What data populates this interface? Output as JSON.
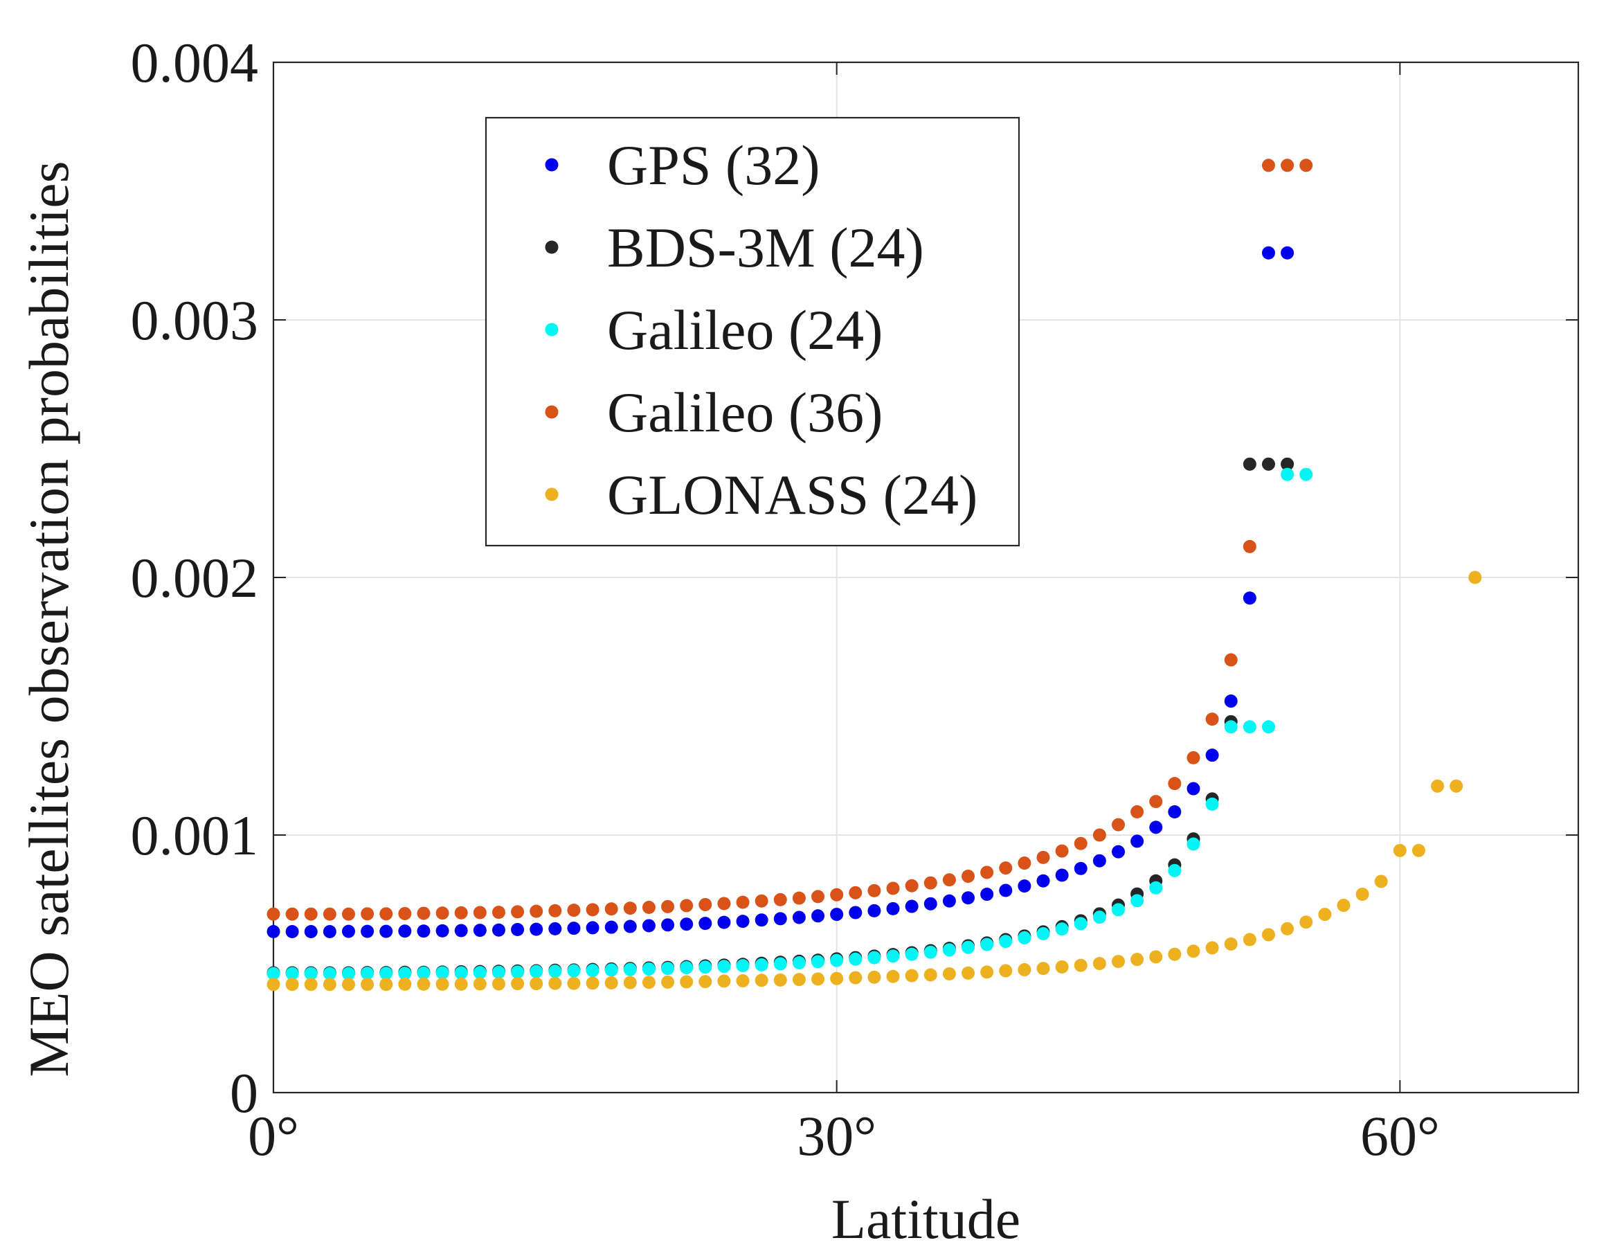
{
  "chart_data": {
    "type": "scatter",
    "xlabel": "Latitude",
    "ylabel": "MEO satellites observation probabilities",
    "xlim": [
      0,
      69.5
    ],
    "ylim": [
      0,
      0.004
    ],
    "grid": true,
    "legend_position": "top-left",
    "x_ticks": [
      {
        "value": 0,
        "label": "0°"
      },
      {
        "value": 30,
        "label": "30°"
      },
      {
        "value": 60,
        "label": "60°"
      }
    ],
    "y_ticks": [
      {
        "value": 0,
        "label": "0"
      },
      {
        "value": 0.001,
        "label": "0.001"
      },
      {
        "value": 0.002,
        "label": "0.002"
      },
      {
        "value": 0.003,
        "label": "0.003"
      },
      {
        "value": 0.004,
        "label": "0.004"
      }
    ],
    "series": [
      {
        "name": "GPS (32)",
        "color": "#0000ee",
        "x": [
          0,
          1,
          2,
          3,
          4,
          5,
          6,
          7,
          8,
          9,
          10,
          11,
          12,
          13,
          14,
          15,
          16,
          17,
          18,
          19,
          20,
          21,
          22,
          23,
          24,
          25,
          26,
          27,
          28,
          29,
          30,
          31,
          32,
          33,
          34,
          35,
          36,
          37,
          38,
          39,
          40,
          41,
          42,
          43,
          44,
          45,
          46,
          47,
          48,
          49,
          50,
          51,
          52,
          53,
          54
        ],
        "y": [
          0.000625,
          0.000625,
          0.000625,
          0.000625,
          0.000626,
          0.000626,
          0.000626,
          0.000627,
          0.000627,
          0.000628,
          0.000629,
          0.00063,
          0.000631,
          0.000633,
          0.000634,
          0.000636,
          0.000638,
          0.00064,
          0.000642,
          0.000645,
          0.000648,
          0.000651,
          0.000654,
          0.000657,
          0.000661,
          0.000665,
          0.00067,
          0.000675,
          0.00068,
          0.000686,
          0.000692,
          0.000699,
          0.000706,
          0.000714,
          0.000723,
          0.000733,
          0.000744,
          0.000756,
          0.00077,
          0.000785,
          0.000802,
          0.000822,
          0.000844,
          0.00087,
          0.0009,
          0.000935,
          0.000976,
          0.00103,
          0.00109,
          0.00118,
          0.00131,
          0.00152,
          0.00192,
          0.00326,
          0.00326
        ]
      },
      {
        "name": "BDS-3M (24)",
        "color": "#262626",
        "x": [
          0,
          1,
          2,
          3,
          4,
          5,
          6,
          7,
          8,
          9,
          10,
          11,
          12,
          13,
          14,
          15,
          16,
          17,
          18,
          19,
          20,
          21,
          22,
          23,
          24,
          25,
          26,
          27,
          28,
          29,
          30,
          31,
          32,
          33,
          34,
          35,
          36,
          37,
          38,
          39,
          40,
          41,
          42,
          43,
          44,
          45,
          46,
          47,
          48,
          49,
          50,
          51,
          52,
          53,
          54
        ],
        "y": [
          0.000465,
          0.000465,
          0.000465,
          0.000465,
          0.000465,
          0.000466,
          0.000466,
          0.000467,
          0.000467,
          0.000468,
          0.000469,
          0.00047,
          0.000471,
          0.000472,
          0.000473,
          0.000475,
          0.000476,
          0.000478,
          0.00048,
          0.000482,
          0.000484,
          0.000486,
          0.000489,
          0.000492,
          0.000495,
          0.000498,
          0.000502,
          0.000506,
          0.00051,
          0.000514,
          0.000519,
          0.000524,
          0.00053,
          0.000536,
          0.000543,
          0.000551,
          0.00056,
          0.00057,
          0.000581,
          0.000594,
          0.000608,
          0.000624,
          0.000644,
          0.000667,
          0.000694,
          0.000728,
          0.000771,
          0.000822,
          0.000884,
          0.000985,
          0.00114,
          0.00144,
          0.00244,
          0.00244,
          0.00244
        ]
      },
      {
        "name": "Galileo (24)",
        "color": "#00f5f5",
        "x": [
          0,
          1,
          2,
          3,
          4,
          5,
          6,
          7,
          8,
          9,
          10,
          11,
          12,
          13,
          14,
          15,
          16,
          17,
          18,
          19,
          20,
          21,
          22,
          23,
          24,
          25,
          26,
          27,
          28,
          29,
          30,
          31,
          32,
          33,
          34,
          35,
          36,
          37,
          38,
          39,
          40,
          41,
          42,
          43,
          44,
          45,
          46,
          47,
          48,
          49,
          50,
          51,
          52,
          53,
          54,
          55
        ],
        "y": [
          0.000462,
          0.000462,
          0.000462,
          0.000462,
          0.000462,
          0.000463,
          0.000463,
          0.000463,
          0.000464,
          0.000465,
          0.000465,
          0.000466,
          0.000467,
          0.000468,
          0.00047,
          0.000471,
          0.000473,
          0.000474,
          0.000476,
          0.000478,
          0.00048,
          0.000482,
          0.000485,
          0.000487,
          0.00049,
          0.000493,
          0.000496,
          0.0005,
          0.000504,
          0.000508,
          0.000513,
          0.000518,
          0.000524,
          0.00053,
          0.000537,
          0.000545,
          0.000554,
          0.000564,
          0.000575,
          0.000587,
          0.000601,
          0.000617,
          0.000635,
          0.000656,
          0.000681,
          0.00071,
          0.000745,
          0.000795,
          0.000862,
          0.000965,
          0.00112,
          0.00142,
          0.00142,
          0.00142,
          0.0024,
          0.0024
        ]
      },
      {
        "name": "Galileo (36)",
        "color": "#d95319",
        "x": [
          0,
          1,
          2,
          3,
          4,
          5,
          6,
          7,
          8,
          9,
          10,
          11,
          12,
          13,
          14,
          15,
          16,
          17,
          18,
          19,
          20,
          21,
          22,
          23,
          24,
          25,
          26,
          27,
          28,
          29,
          30,
          31,
          32,
          33,
          34,
          35,
          36,
          37,
          38,
          39,
          40,
          41,
          42,
          43,
          44,
          45,
          46,
          47,
          48,
          49,
          50,
          51,
          52,
          53,
          54,
          55
        ],
        "y": [
          0.000693,
          0.000693,
          0.000693,
          0.000693,
          0.000693,
          0.000694,
          0.000694,
          0.000695,
          0.000696,
          0.000697,
          0.000698,
          0.000699,
          0.0007,
          0.000702,
          0.000704,
          0.000706,
          0.000708,
          0.00071,
          0.000713,
          0.000716,
          0.000719,
          0.000722,
          0.000726,
          0.00073,
          0.000734,
          0.000739,
          0.000744,
          0.000749,
          0.000755,
          0.000761,
          0.000768,
          0.000776,
          0.000784,
          0.000793,
          0.000803,
          0.000814,
          0.000826,
          0.00084,
          0.000855,
          0.000872,
          0.000891,
          0.000913,
          0.000938,
          0.000967,
          0.001,
          0.00104,
          0.00109,
          0.00113,
          0.0012,
          0.0013,
          0.00145,
          0.00168,
          0.00212,
          0.0036,
          0.0036,
          0.0036
        ]
      },
      {
        "name": "GLONASS (24)",
        "color": "#edb120",
        "x": [
          0,
          1,
          2,
          3,
          4,
          5,
          6,
          7,
          8,
          9,
          10,
          11,
          12,
          13,
          14,
          15,
          16,
          17,
          18,
          19,
          20,
          21,
          22,
          23,
          24,
          25,
          26,
          27,
          28,
          29,
          30,
          31,
          32,
          33,
          34,
          35,
          36,
          37,
          38,
          39,
          40,
          41,
          42,
          43,
          44,
          45,
          46,
          47,
          48,
          49,
          50,
          51,
          52,
          53,
          54,
          55,
          56,
          57,
          58,
          59,
          60,
          61,
          62,
          63,
          64
        ],
        "y": [
          0.00042,
          0.00042,
          0.00042,
          0.00042,
          0.00042,
          0.00042,
          0.00042,
          0.000421,
          0.000421,
          0.000421,
          0.000421,
          0.000422,
          0.000422,
          0.000423,
          0.000423,
          0.000424,
          0.000424,
          0.000425,
          0.000426,
          0.000427,
          0.000428,
          0.000429,
          0.00043,
          0.000431,
          0.000433,
          0.000434,
          0.000436,
          0.000437,
          0.000439,
          0.000441,
          0.000443,
          0.000446,
          0.000448,
          0.000451,
          0.000454,
          0.000457,
          0.000461,
          0.000464,
          0.000468,
          0.000473,
          0.000477,
          0.000482,
          0.000488,
          0.000494,
          0.000501,
          0.000509,
          0.000517,
          0.000527,
          0.000537,
          0.000549,
          0.000562,
          0.000577,
          0.000594,
          0.000613,
          0.000636,
          0.000662,
          0.000692,
          0.000727,
          0.00077,
          0.00082,
          0.00094,
          0.00094,
          0.00119,
          0.00119,
          0.002
        ]
      }
    ]
  }
}
